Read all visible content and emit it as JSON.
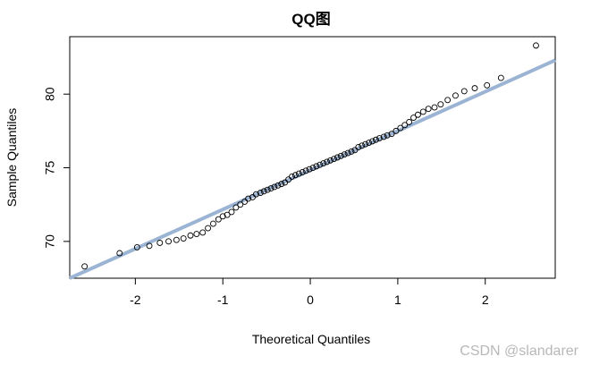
{
  "chart_data": {
    "type": "scatter",
    "title": "QQ图",
    "xlabel": "Theoretical Quantiles",
    "ylabel": "Sample Quantiles",
    "xlim": [
      -2.75,
      2.8
    ],
    "ylim": [
      67.5,
      83.9
    ],
    "x_ticks": [
      -2,
      -1,
      0,
      1,
      2
    ],
    "y_ticks": [
      70,
      75,
      80
    ],
    "grid": false,
    "marker": "open-circle",
    "point_color": "#000000",
    "line_color": "#9bb4d4",
    "reference_line": {
      "x": [
        -2.75,
        2.8
      ],
      "y": [
        67.5,
        82.3
      ]
    },
    "points": [
      [
        -2.58,
        68.3
      ],
      [
        -2.18,
        69.2
      ],
      [
        -1.98,
        69.6
      ],
      [
        -1.84,
        69.7
      ],
      [
        -1.72,
        69.9
      ],
      [
        -1.62,
        70.0
      ],
      [
        -1.53,
        70.1
      ],
      [
        -1.45,
        70.2
      ],
      [
        -1.37,
        70.4
      ],
      [
        -1.3,
        70.5
      ],
      [
        -1.23,
        70.6
      ],
      [
        -1.17,
        70.9
      ],
      [
        -1.11,
        71.2
      ],
      [
        -1.05,
        71.5
      ],
      [
        -1.0,
        71.7
      ],
      [
        -0.95,
        71.8
      ],
      [
        -0.9,
        72.0
      ],
      [
        -0.85,
        72.3
      ],
      [
        -0.8,
        72.5
      ],
      [
        -0.75,
        72.7
      ],
      [
        -0.71,
        72.9
      ],
      [
        -0.66,
        73.0
      ],
      [
        -0.62,
        73.2
      ],
      [
        -0.57,
        73.3
      ],
      [
        -0.53,
        73.4
      ],
      [
        -0.49,
        73.5
      ],
      [
        -0.45,
        73.6
      ],
      [
        -0.41,
        73.7
      ],
      [
        -0.37,
        73.8
      ],
      [
        -0.33,
        73.9
      ],
      [
        -0.29,
        74.0
      ],
      [
        -0.25,
        74.2
      ],
      [
        -0.21,
        74.4
      ],
      [
        -0.17,
        74.5
      ],
      [
        -0.13,
        74.6
      ],
      [
        -0.09,
        74.7
      ],
      [
        -0.05,
        74.8
      ],
      [
        -0.01,
        74.9
      ],
      [
        0.03,
        75.0
      ],
      [
        0.07,
        75.1
      ],
      [
        0.11,
        75.2
      ],
      [
        0.15,
        75.3
      ],
      [
        0.19,
        75.4
      ],
      [
        0.23,
        75.5
      ],
      [
        0.27,
        75.6
      ],
      [
        0.31,
        75.7
      ],
      [
        0.35,
        75.8
      ],
      [
        0.39,
        75.9
      ],
      [
        0.43,
        76.0
      ],
      [
        0.47,
        76.1
      ],
      [
        0.51,
        76.2
      ],
      [
        0.55,
        76.4
      ],
      [
        0.59,
        76.5
      ],
      [
        0.63,
        76.6
      ],
      [
        0.67,
        76.7
      ],
      [
        0.71,
        76.8
      ],
      [
        0.75,
        76.9
      ],
      [
        0.79,
        77.0
      ],
      [
        0.84,
        77.1
      ],
      [
        0.88,
        77.2
      ],
      [
        0.93,
        77.3
      ],
      [
        0.98,
        77.5
      ],
      [
        1.03,
        77.7
      ],
      [
        1.08,
        77.9
      ],
      [
        1.13,
        78.1
      ],
      [
        1.18,
        78.4
      ],
      [
        1.23,
        78.6
      ],
      [
        1.29,
        78.8
      ],
      [
        1.35,
        79.0
      ],
      [
        1.42,
        79.1
      ],
      [
        1.49,
        79.3
      ],
      [
        1.57,
        79.6
      ],
      [
        1.66,
        79.9
      ],
      [
        1.76,
        80.2
      ],
      [
        1.88,
        80.4
      ],
      [
        2.02,
        80.6
      ],
      [
        2.18,
        81.1
      ],
      [
        2.58,
        83.3
      ]
    ]
  },
  "watermark": "CSDN @slandarer"
}
